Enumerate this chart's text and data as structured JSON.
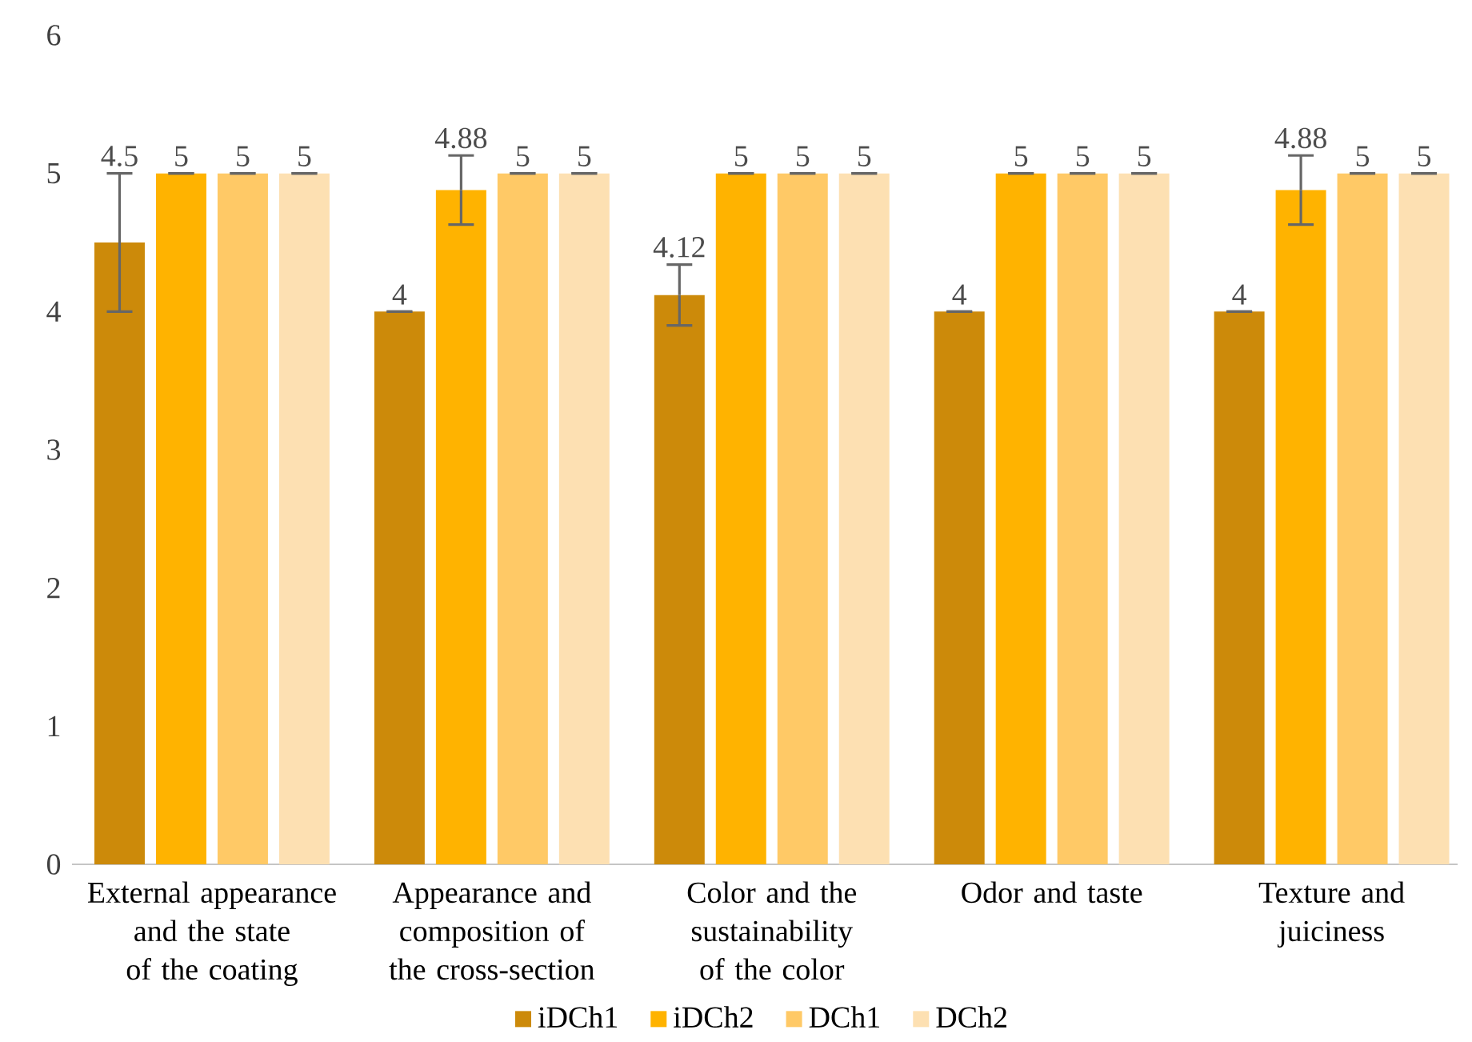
{
  "chart_data": {
    "type": "bar",
    "categories": [
      "External appearance and the state of the coating",
      "Appearance and composition of the cross-section",
      "Color and the sustainability of the color",
      "Odor and taste",
      "Texture and juiciness"
    ],
    "series": [
      {
        "name": "iDCh1",
        "color": "#cc8a0a",
        "values": [
          4.5,
          4,
          4.12,
          4,
          4
        ],
        "errors": [
          0.5,
          0,
          0.22,
          0,
          0
        ]
      },
      {
        "name": "iDCh2",
        "color": "#ffb300",
        "values": [
          5,
          4.88,
          5,
          5,
          4.88
        ],
        "errors": [
          0,
          0.25,
          0,
          0,
          0.25
        ]
      },
      {
        "name": "DCh1",
        "color": "#ffc966",
        "values": [
          5,
          5,
          5,
          5,
          5
        ],
        "errors": [
          0,
          0,
          0,
          0,
          0
        ]
      },
      {
        "name": "DCh2",
        "color": "#fde0b2",
        "values": [
          5,
          5,
          5,
          5,
          5
        ],
        "errors": [
          0,
          0,
          0,
          0,
          0
        ]
      }
    ],
    "ylim": [
      0,
      6
    ],
    "yticks": [
      0,
      1,
      2,
      3,
      4,
      5,
      6
    ],
    "data_labels": true,
    "legend": "bottom"
  }
}
